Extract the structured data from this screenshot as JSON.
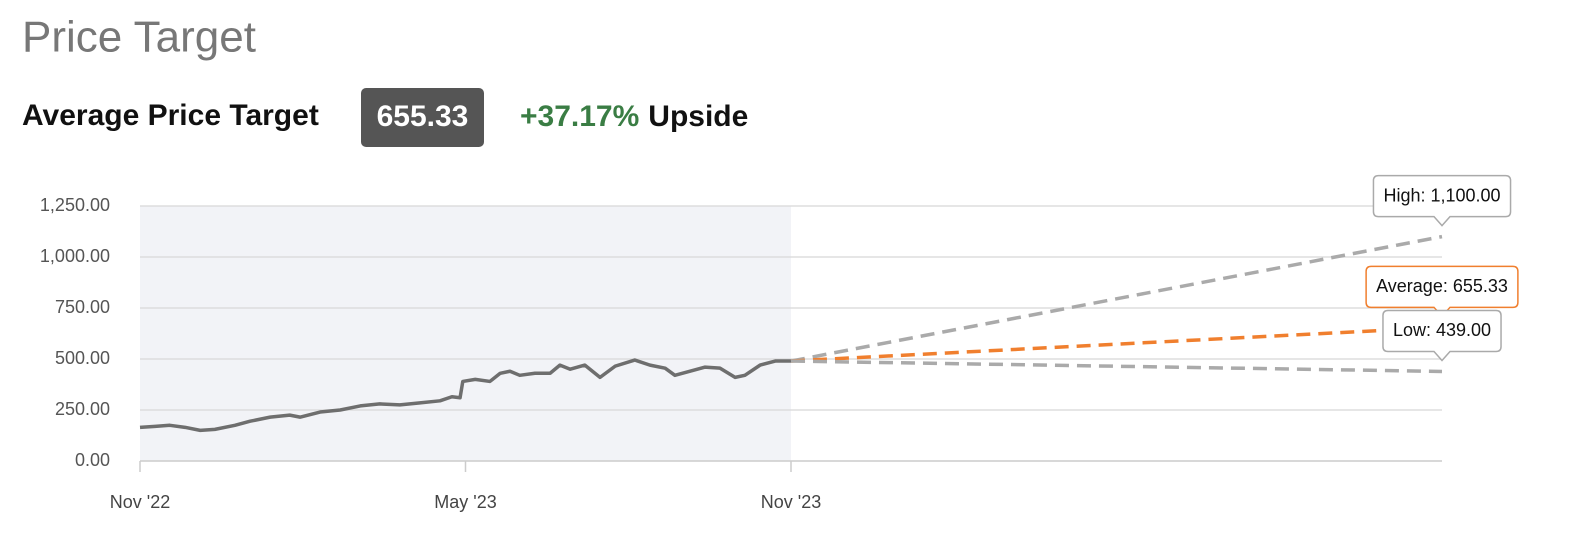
{
  "header": {
    "title": "Price Target",
    "avg_label": "Average Price Target",
    "avg_value": "655.33",
    "upside_value": "+37.17%",
    "upside_label": "Upside"
  },
  "chart_data": {
    "type": "line",
    "x": null,
    "series": [
      {
        "name": "Price",
        "color": "#6e6e6e",
        "x": [
          0,
          0.28,
          0.55,
          0.83,
          1.11,
          1.38,
          1.75,
          2.03,
          2.4,
          2.76,
          2.95,
          3.32,
          3.69,
          4.06,
          4.42,
          4.79,
          5.16,
          5.53,
          5.75,
          5.9,
          5.95,
          6.18,
          6.45,
          6.64,
          6.82,
          7.0,
          7.28,
          7.56,
          7.74,
          7.93,
          8.2,
          8.48,
          8.76,
          9.12,
          9.4,
          9.68,
          9.86,
          10.14,
          10.41,
          10.69,
          10.97,
          11.15,
          11.43,
          11.71,
          12
        ],
        "values": [
          165,
          170,
          175,
          165,
          150,
          155,
          175,
          195,
          215,
          225,
          215,
          240,
          250,
          270,
          280,
          275,
          285,
          295,
          315,
          310,
          390,
          400,
          390,
          430,
          440,
          420,
          430,
          430,
          470,
          450,
          470,
          410,
          465,
          495,
          470,
          455,
          420,
          440,
          460,
          455,
          410,
          420,
          470,
          490,
          490
        ]
      }
    ],
    "targets": [
      {
        "name": "High",
        "text": "High: 1,100.00",
        "value": 1100,
        "color": "#aaaaaa"
      },
      {
        "name": "Average",
        "text": "Average: 655.33",
        "value": 655.33,
        "color": "#f07f2e"
      },
      {
        "name": "Low",
        "text": "Low: 439.00",
        "value": 439,
        "color": "#aaaaaa"
      }
    ],
    "xlim": [
      0,
      24
    ],
    "xticks": [
      {
        "value": 0,
        "label": "Nov '22"
      },
      {
        "value": 6,
        "label": "May '23"
      },
      {
        "value": 12,
        "label": "Nov '23"
      }
    ],
    "ylim": [
      0,
      1250
    ],
    "yticks": [
      {
        "value": 0,
        "label": "0.00"
      },
      {
        "value": 250,
        "label": "250.00"
      },
      {
        "value": 500,
        "label": "500.00"
      },
      {
        "value": 750,
        "label": "750.00"
      },
      {
        "value": 1000,
        "label": "1,000.00"
      },
      {
        "value": 1250,
        "label": "1,250.00"
      }
    ],
    "grid": true
  }
}
